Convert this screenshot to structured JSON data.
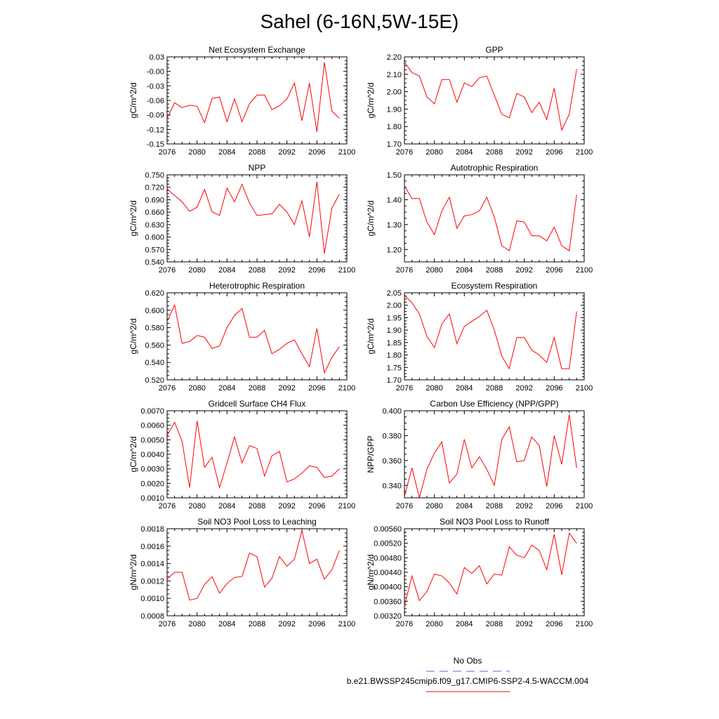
{
  "figure": {
    "title": "Sahel (6-16N,5W-15E)"
  },
  "legend": {
    "entries": [
      {
        "label": "No Obs",
        "color": "#6666cc",
        "dash": true
      },
      {
        "label": "b.e21.BWSSP245cmip6.f09_g17.CMIP6-SSP2-4.5-WACCM.004",
        "color": "#ff0000",
        "dash": false
      }
    ]
  },
  "colors": {
    "series": "#ff0000",
    "axis": "#000000"
  },
  "chart_data": [
    {
      "type": "line",
      "title": "Net Ecosystem Exchange",
      "xlabel": "",
      "ylabel": "gC/m^2/d",
      "xlim": [
        2076,
        2100
      ],
      "xticks": [
        "2076",
        "2080",
        "2084",
        "2088",
        "2092",
        "2096",
        "2100"
      ],
      "ylim": [
        -0.15,
        0.03
      ],
      "yticks": [
        "-0.15",
        "-0.12",
        "-0.09",
        "-0.06",
        "-0.03",
        "-0.00",
        "0.03"
      ],
      "x": [
        2076,
        2077,
        2078,
        2079,
        2080,
        2081,
        2082,
        2083,
        2084,
        2085,
        2086,
        2087,
        2088,
        2089,
        2090,
        2091,
        2092,
        2093,
        2094,
        2095,
        2096,
        2097,
        2098,
        2099
      ],
      "values": [
        -0.097,
        -0.065,
        -0.075,
        -0.07,
        -0.072,
        -0.106,
        -0.056,
        -0.053,
        -0.104,
        -0.057,
        -0.104,
        -0.067,
        -0.049,
        -0.049,
        -0.079,
        -0.071,
        -0.057,
        -0.024,
        -0.102,
        -0.024,
        -0.125,
        0.019,
        -0.082,
        -0.097
      ]
    },
    {
      "type": "line",
      "title": "GPP",
      "xlabel": "",
      "ylabel": "gC/m^2/d",
      "xlim": [
        2076,
        2100
      ],
      "xticks": [
        "2076",
        "2080",
        "2084",
        "2088",
        "2092",
        "2096",
        "2100"
      ],
      "ylim": [
        1.7,
        2.2
      ],
      "yticks": [
        "1.70",
        "1.80",
        "1.90",
        "2.00",
        "2.10",
        "2.20"
      ],
      "x": [
        2076,
        2077,
        2078,
        2079,
        2080,
        2081,
        2082,
        2083,
        2084,
        2085,
        2086,
        2087,
        2088,
        2089,
        2090,
        2091,
        2092,
        2093,
        2094,
        2095,
        2096,
        2097,
        2098,
        2099
      ],
      "values": [
        2.17,
        2.11,
        2.09,
        1.97,
        1.93,
        2.07,
        2.07,
        1.94,
        2.05,
        2.03,
        2.08,
        2.09,
        1.98,
        1.87,
        1.85,
        1.99,
        1.97,
        1.88,
        1.94,
        1.84,
        2.02,
        1.78,
        1.87,
        2.13
      ]
    },
    {
      "type": "line",
      "title": "NPP",
      "xlabel": "",
      "ylabel": "gC/m^2/d",
      "xlim": [
        2076,
        2100
      ],
      "xticks": [
        "2076",
        "2080",
        "2084",
        "2088",
        "2092",
        "2096",
        "2100"
      ],
      "ylim": [
        0.54,
        0.75
      ],
      "yticks": [
        "0.540",
        "0.570",
        "0.600",
        "0.630",
        "0.660",
        "0.690",
        "0.720",
        "0.750"
      ],
      "x": [
        2076,
        2077,
        2078,
        2079,
        2080,
        2081,
        2082,
        2083,
        2084,
        2085,
        2086,
        2087,
        2088,
        2089,
        2090,
        2091,
        2092,
        2093,
        2094,
        2095,
        2096,
        2097,
        2098,
        2099
      ],
      "values": [
        0.716,
        0.7,
        0.685,
        0.662,
        0.672,
        0.715,
        0.661,
        0.652,
        0.718,
        0.685,
        0.727,
        0.682,
        0.652,
        0.654,
        0.656,
        0.679,
        0.66,
        0.63,
        0.688,
        0.6,
        0.733,
        0.56,
        0.67,
        0.703
      ]
    },
    {
      "type": "line",
      "title": "Autotrophic Respiration",
      "xlabel": "",
      "ylabel": "gC/m^2/d",
      "xlim": [
        2076,
        2100
      ],
      "xticks": [
        "2076",
        "2080",
        "2084",
        "2088",
        "2092",
        "2096",
        "2100"
      ],
      "ylim": [
        1.15,
        1.5
      ],
      "yticks": [
        "1.20",
        "1.30",
        "1.40",
        "1.50"
      ],
      "x": [
        2076,
        2077,
        2078,
        2079,
        2080,
        2081,
        2082,
        2083,
        2084,
        2085,
        2086,
        2087,
        2088,
        2089,
        2090,
        2091,
        2092,
        2093,
        2094,
        2095,
        2096,
        2097,
        2098,
        2099
      ],
      "values": [
        1.455,
        1.405,
        1.405,
        1.31,
        1.26,
        1.355,
        1.41,
        1.285,
        1.335,
        1.34,
        1.355,
        1.41,
        1.33,
        1.215,
        1.195,
        1.315,
        1.31,
        1.255,
        1.255,
        1.235,
        1.29,
        1.215,
        1.195,
        1.42
      ]
    },
    {
      "type": "line",
      "title": "Heterotrophic Respiration",
      "xlabel": "",
      "ylabel": "gC/m^2/d",
      "xlim": [
        2076,
        2100
      ],
      "xticks": [
        "2076",
        "2080",
        "2084",
        "2088",
        "2092",
        "2096",
        "2100"
      ],
      "ylim": [
        0.52,
        0.62
      ],
      "yticks": [
        "0.520",
        "0.540",
        "0.560",
        "0.580",
        "0.600",
        "0.620"
      ],
      "x": [
        2076,
        2077,
        2078,
        2079,
        2080,
        2081,
        2082,
        2083,
        2084,
        2085,
        2086,
        2087,
        2088,
        2089,
        2090,
        2091,
        2092,
        2093,
        2094,
        2095,
        2096,
        2097,
        2098,
        2099
      ],
      "values": [
        0.587,
        0.606,
        0.562,
        0.564,
        0.571,
        0.569,
        0.556,
        0.559,
        0.58,
        0.594,
        0.602,
        0.569,
        0.569,
        0.577,
        0.55,
        0.555,
        0.562,
        0.566,
        0.55,
        0.535,
        0.579,
        0.528,
        0.546,
        0.558
      ]
    },
    {
      "type": "line",
      "title": "Ecosystem Respiration",
      "xlabel": "",
      "ylabel": "gC/m^2/d",
      "xlim": [
        2076,
        2100
      ],
      "xticks": [
        "2076",
        "2080",
        "2084",
        "2088",
        "2092",
        "2096",
        "2100"
      ],
      "ylim": [
        1.7,
        2.05
      ],
      "yticks": [
        "1.70",
        "1.75",
        "1.80",
        "1.85",
        "1.90",
        "1.95",
        "2.00",
        "2.05"
      ],
      "x": [
        2076,
        2077,
        2078,
        2079,
        2080,
        2081,
        2082,
        2083,
        2084,
        2085,
        2086,
        2087,
        2088,
        2089,
        2090,
        2091,
        2092,
        2093,
        2094,
        2095,
        2096,
        2097,
        2098,
        2099
      ],
      "values": [
        2.04,
        2.01,
        1.965,
        1.875,
        1.83,
        1.925,
        1.965,
        1.845,
        1.915,
        1.935,
        1.955,
        1.98,
        1.9,
        1.795,
        1.745,
        1.87,
        1.87,
        1.82,
        1.8,
        1.77,
        1.87,
        1.745,
        1.745,
        1.975
      ]
    },
    {
      "type": "line",
      "title": "Gridcell Surface CH4 Flux",
      "xlabel": "",
      "ylabel": "gC/m^2/d",
      "xlim": [
        2076,
        2100
      ],
      "xticks": [
        "2076",
        "2080",
        "2084",
        "2088",
        "2092",
        "2096",
        "2100"
      ],
      "ylim": [
        0.001,
        0.007
      ],
      "yticks": [
        "0.0010",
        "0.0020",
        "0.0030",
        "0.0040",
        "0.0050",
        "0.0060",
        "0.0070"
      ],
      "x": [
        2076,
        2077,
        2078,
        2079,
        2080,
        2081,
        2082,
        2083,
        2084,
        2085,
        2086,
        2087,
        2088,
        2089,
        2090,
        2091,
        2092,
        2093,
        2094,
        2095,
        2096,
        2097,
        2098,
        2099
      ],
      "values": [
        0.0053,
        0.0062,
        0.0049,
        0.0017,
        0.0063,
        0.0031,
        0.0038,
        0.0017,
        0.0034,
        0.0052,
        0.0034,
        0.0046,
        0.0044,
        0.0025,
        0.0039,
        0.0042,
        0.0021,
        0.0023,
        0.0027,
        0.0032,
        0.0031,
        0.0024,
        0.0025,
        0.003
      ]
    },
    {
      "type": "line",
      "title": "Carbon Use Efficiency (NPP/GPP)",
      "xlabel": "",
      "ylabel": "NPP/GPP",
      "xlim": [
        2076,
        2100
      ],
      "xticks": [
        "2076",
        "2080",
        "2084",
        "2088",
        "2092",
        "2096",
        "2100"
      ],
      "ylim": [
        0.33,
        0.4
      ],
      "yticks": [
        "0.340",
        "0.360",
        "0.380",
        "0.400"
      ],
      "x": [
        2076,
        2077,
        2078,
        2079,
        2080,
        2081,
        2082,
        2083,
        2084,
        2085,
        2086,
        2087,
        2088,
        2089,
        2090,
        2091,
        2092,
        2093,
        2094,
        2095,
        2096,
        2097,
        2098,
        2099
      ],
      "values": [
        0.331,
        0.354,
        0.33,
        0.353,
        0.366,
        0.375,
        0.342,
        0.349,
        0.377,
        0.354,
        0.363,
        0.353,
        0.34,
        0.377,
        0.387,
        0.359,
        0.36,
        0.379,
        0.372,
        0.339,
        0.38,
        0.357,
        0.397,
        0.354
      ]
    },
    {
      "type": "line",
      "title": "Soil NO3 Pool Loss to Leaching",
      "xlabel": "",
      "ylabel": "gN/m^2/d",
      "xlim": [
        2076,
        2100
      ],
      "xticks": [
        "2076",
        "2080",
        "2084",
        "2088",
        "2092",
        "2096",
        "2100"
      ],
      "ylim": [
        0.0008,
        0.0018
      ],
      "yticks": [
        "0.0008",
        "0.0010",
        "0.0012",
        "0.0014",
        "0.0016",
        "0.0018"
      ],
      "x": [
        2076,
        2077,
        2078,
        2079,
        2080,
        2081,
        2082,
        2083,
        2084,
        2085,
        2086,
        2087,
        2088,
        2089,
        2090,
        2091,
        2092,
        2093,
        2094,
        2095,
        2096,
        2097,
        2098,
        2099
      ],
      "values": [
        0.00122,
        0.0013,
        0.0013,
        0.00098,
        0.001,
        0.00116,
        0.00125,
        0.00106,
        0.00117,
        0.00124,
        0.00125,
        0.00152,
        0.00148,
        0.00113,
        0.00123,
        0.00148,
        0.00137,
        0.00145,
        0.00178,
        0.0014,
        0.00145,
        0.00122,
        0.00133,
        0.00155
      ]
    },
    {
      "type": "line",
      "title": "Soil NO3 Pool Loss to Runoff",
      "xlabel": "",
      "ylabel": "gN/m^2/d",
      "xlim": [
        2076,
        2100
      ],
      "xticks": [
        "2076",
        "2080",
        "2084",
        "2088",
        "2092",
        "2096",
        "2100"
      ],
      "ylim": [
        0.0032,
        0.0056
      ],
      "yticks": [
        "0.00320",
        "0.00360",
        "0.00400",
        "0.00440",
        "0.00480",
        "0.00520",
        "0.00560"
      ],
      "x": [
        2076,
        2077,
        2078,
        2079,
        2080,
        2081,
        2082,
        2083,
        2084,
        2085,
        2086,
        2087,
        2088,
        2089,
        2090,
        2091,
        2092,
        2093,
        2094,
        2095,
        2096,
        2097,
        2098,
        2099
      ],
      "values": [
        0.00347,
        0.0043,
        0.00362,
        0.00387,
        0.00435,
        0.0043,
        0.0041,
        0.0038,
        0.00453,
        0.00437,
        0.00458,
        0.00408,
        0.00435,
        0.00432,
        0.0051,
        0.00487,
        0.0048,
        0.00515,
        0.005,
        0.00447,
        0.00545,
        0.00433,
        0.00548,
        0.0052
      ]
    }
  ]
}
